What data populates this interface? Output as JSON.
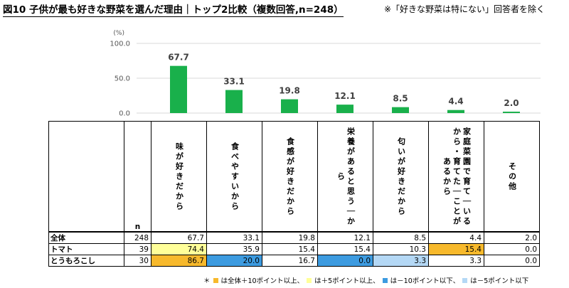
{
  "title": "図10 子供が最も好きな野菜を選んだ理由｜トップ2比較（複数回答,n=248）",
  "note": "※「好きな野菜は特にない」回答者を除く",
  "colors": {
    "bar": "#19b04b",
    "plus10": "#f7b92c",
    "plus5": "#ffff99",
    "minus10": "#3d9be0",
    "minus5": "#b4d8f5"
  },
  "chart_data": {
    "type": "bar",
    "yunit": "(%)",
    "ylim": [
      0,
      100
    ],
    "yticks": [
      "100.0",
      "50.0",
      "0.0"
    ],
    "categories": [
      "味が好きだから",
      "食べやすいから",
      "食感が好きだから",
      "栄養があると思うから",
      "匂いが好きだから",
      "家庭菜園で育てているから・育てたことがあるから",
      "その他"
    ],
    "values": [
      67.7,
      33.1,
      19.8,
      12.1,
      8.5,
      4.4,
      2.0
    ],
    "value_labels": [
      "67.7",
      "33.1",
      "19.8",
      "12.1",
      "8.5",
      "4.4",
      "2.0"
    ]
  },
  "table": {
    "n_header": "n",
    "columns": [
      "味が好きだから",
      "食べやすいから",
      "食感が好きだから",
      "栄養があると思う｜から",
      "匂いが好きだから",
      "家庭菜園で育て｜いるから・育てた｜ことがあるから",
      "その他"
    ],
    "rows": [
      {
        "label": "全体",
        "n": "248",
        "cells": [
          "67.7",
          "33.1",
          "19.8",
          "12.1",
          "8.5",
          "4.4",
          "2.0"
        ],
        "hl": [
          "",
          "",
          "",
          "",
          "",
          "",
          ""
        ]
      },
      {
        "label": "トマト",
        "n": "39",
        "cells": [
          "74.4",
          "35.9",
          "15.4",
          "15.4",
          "10.3",
          "15.4",
          "0.0"
        ],
        "hl": [
          "plus5",
          "",
          "",
          "",
          "",
          "plus10",
          ""
        ]
      },
      {
        "label": "とうもろこし",
        "n": "30",
        "cells": [
          "86.7",
          "20.0",
          "16.7",
          "0.0",
          "3.3",
          "3.3",
          "0.0"
        ],
        "hl": [
          "plus10",
          "minus10",
          "",
          "minus10",
          "minus5",
          "",
          ""
        ]
      }
    ]
  },
  "legend": {
    "prefix": "＊",
    "items": [
      "は全体＋10ポイント以上、",
      "は＋5ポイント以上、",
      "は－10ポイント以下、",
      "は－5ポイント以下"
    ]
  }
}
